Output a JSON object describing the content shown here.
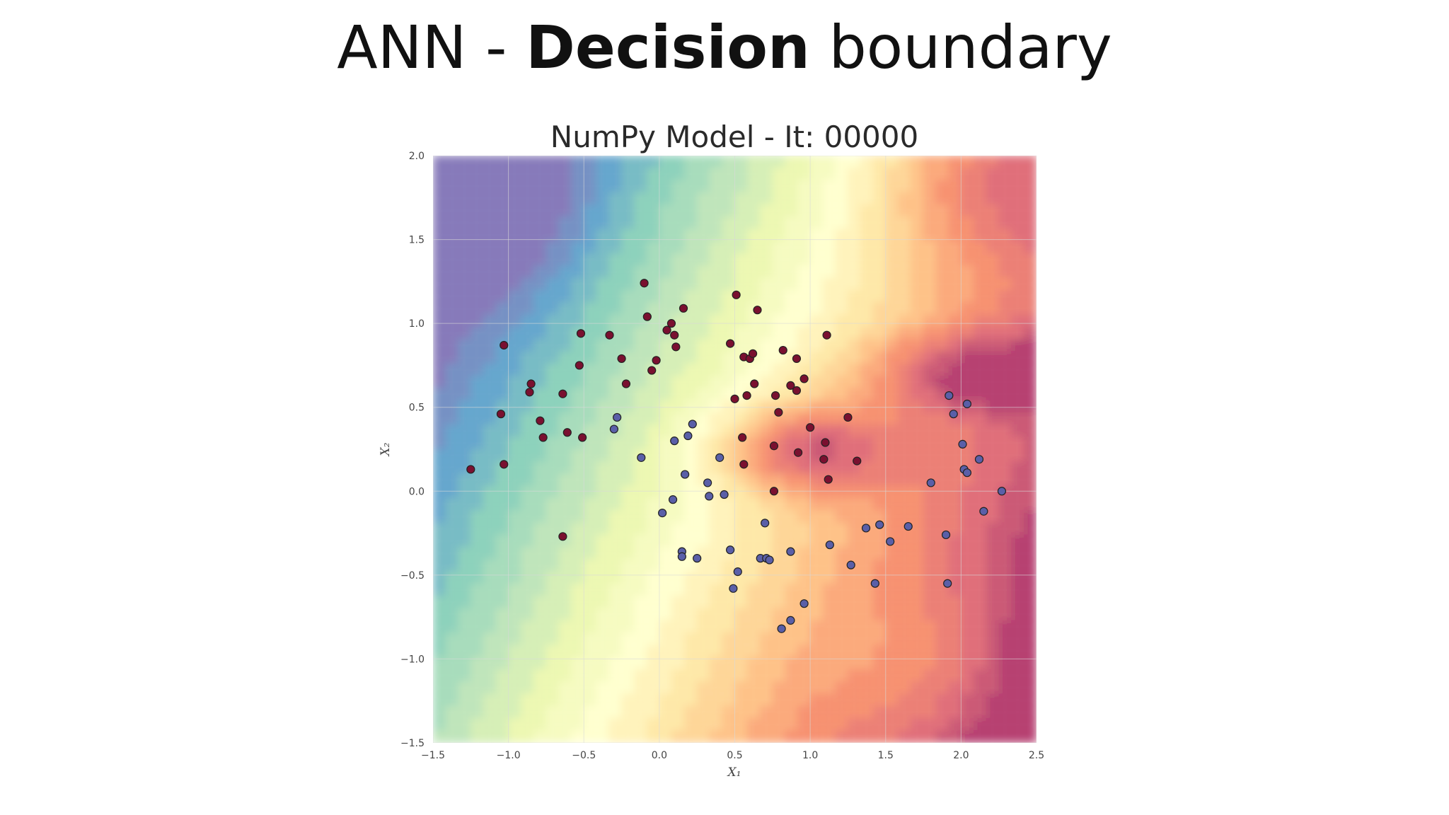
{
  "slide": {
    "title_prefix": "ANN - ",
    "title_bold": "Decision",
    "title_suffix": " boundary"
  },
  "chart_data": {
    "type": "scatter",
    "title": "NumPy Model - It: 00000",
    "xlabel": "X₁",
    "ylabel": "X₂",
    "xlim": [
      -1.5,
      2.5
    ],
    "ylim": [
      -1.5,
      2.0
    ],
    "xticks": [
      -1.5,
      -1.0,
      -0.5,
      0.0,
      0.5,
      1.0,
      1.5,
      2.0,
      2.5
    ],
    "yticks": [
      -1.5,
      -1.0,
      -0.5,
      0.0,
      0.5,
      1.0,
      1.5,
      2.0
    ],
    "xtick_labels": [
      "−1.5",
      "−1.0",
      "−0.5",
      "0.0",
      "0.5",
      "1.0",
      "1.5",
      "2.0",
      "2.5"
    ],
    "ytick_labels": [
      "−1.5",
      "−1.0",
      "−0.5",
      "0.0",
      "0.5",
      "1.0",
      "1.5",
      "2.0"
    ],
    "grid": true,
    "background": "filled contour (Spectral colormap) of model output",
    "colors": {
      "class_0": "#7a1030",
      "class_1": "#5a5fa8",
      "point_edge": "#222222",
      "grid": "#d9d9d9"
    },
    "series": [
      {
        "points": [
          [
            -1.25,
            0.13
          ],
          [
            -1.05,
            0.46
          ],
          [
            -1.03,
            0.87
          ],
          [
            -1.03,
            0.16
          ],
          [
            -0.86,
            0.59
          ],
          [
            -0.85,
            0.64
          ],
          [
            -0.79,
            0.42
          ],
          [
            -0.77,
            0.32
          ],
          [
            -0.64,
            0.58
          ],
          [
            -0.61,
            0.35
          ],
          [
            -0.52,
            0.94
          ],
          [
            -0.53,
            0.75
          ],
          [
            -0.51,
            0.32
          ],
          [
            -0.33,
            0.93
          ],
          [
            -0.25,
            0.79
          ],
          [
            -0.22,
            0.64
          ],
          [
            -0.1,
            1.24
          ],
          [
            -0.08,
            1.04
          ],
          [
            -0.05,
            0.72
          ],
          [
            -0.02,
            0.78
          ],
          [
            0.05,
            0.96
          ],
          [
            0.08,
            1.0
          ],
          [
            0.1,
            0.93
          ],
          [
            0.11,
            0.86
          ],
          [
            0.16,
            1.09
          ],
          [
            0.47,
            0.88
          ],
          [
            0.5,
            0.55
          ],
          [
            0.51,
            1.17
          ],
          [
            0.56,
            0.8
          ],
          [
            0.55,
            0.32
          ],
          [
            0.56,
            0.16
          ],
          [
            0.58,
            0.57
          ],
          [
            0.6,
            0.79
          ],
          [
            0.62,
            0.82
          ],
          [
            0.63,
            0.64
          ],
          [
            0.65,
            1.08
          ],
          [
            0.76,
            0.27
          ],
          [
            0.77,
            0.57
          ],
          [
            0.79,
            0.47
          ],
          [
            0.82,
            0.84
          ],
          [
            0.87,
            0.63
          ],
          [
            0.91,
            0.6
          ],
          [
            0.91,
            0.79
          ],
          [
            0.92,
            0.23
          ],
          [
            0.96,
            0.67
          ],
          [
            1.0,
            0.38
          ],
          [
            1.09,
            0.19
          ],
          [
            1.1,
            0.29
          ],
          [
            1.12,
            0.07
          ],
          [
            1.11,
            0.93
          ],
          [
            1.25,
            0.44
          ],
          [
            1.31,
            0.18
          ],
          [
            -0.64,
            -0.27
          ],
          [
            0.76,
            0.0
          ]
        ]
      },
      {
        "points": [
          [
            -0.3,
            0.37
          ],
          [
            -0.28,
            0.44
          ],
          [
            -0.12,
            0.2
          ],
          [
            0.02,
            -0.13
          ],
          [
            0.09,
            -0.05
          ],
          [
            0.1,
            0.3
          ],
          [
            0.15,
            -0.36
          ],
          [
            0.15,
            -0.39
          ],
          [
            0.17,
            0.1
          ],
          [
            0.19,
            0.33
          ],
          [
            0.22,
            0.4
          ],
          [
            0.25,
            -0.4
          ],
          [
            0.32,
            0.05
          ],
          [
            0.33,
            -0.03
          ],
          [
            0.4,
            0.2
          ],
          [
            0.43,
            -0.02
          ],
          [
            0.47,
            -0.35
          ],
          [
            0.49,
            -0.58
          ],
          [
            0.52,
            -0.48
          ],
          [
            0.67,
            -0.4
          ],
          [
            0.7,
            -0.19
          ],
          [
            0.71,
            -0.4
          ],
          [
            0.73,
            -0.41
          ],
          [
            0.81,
            -0.82
          ],
          [
            0.87,
            -0.36
          ],
          [
            0.87,
            -0.77
          ],
          [
            0.96,
            -0.67
          ],
          [
            1.13,
            -0.32
          ],
          [
            1.27,
            -0.44
          ],
          [
            1.37,
            -0.22
          ],
          [
            1.43,
            -0.55
          ],
          [
            1.46,
            -0.2
          ],
          [
            1.53,
            -0.3
          ],
          [
            1.65,
            -0.21
          ],
          [
            1.8,
            0.05
          ],
          [
            1.9,
            -0.26
          ],
          [
            1.91,
            -0.55
          ],
          [
            1.92,
            0.57
          ],
          [
            1.95,
            0.46
          ],
          [
            2.01,
            0.28
          ],
          [
            2.02,
            0.13
          ],
          [
            2.04,
            0.11
          ],
          [
            2.04,
            0.52
          ],
          [
            2.12,
            0.19
          ],
          [
            2.15,
            -0.12
          ],
          [
            2.27,
            0.0
          ]
        ]
      }
    ]
  }
}
